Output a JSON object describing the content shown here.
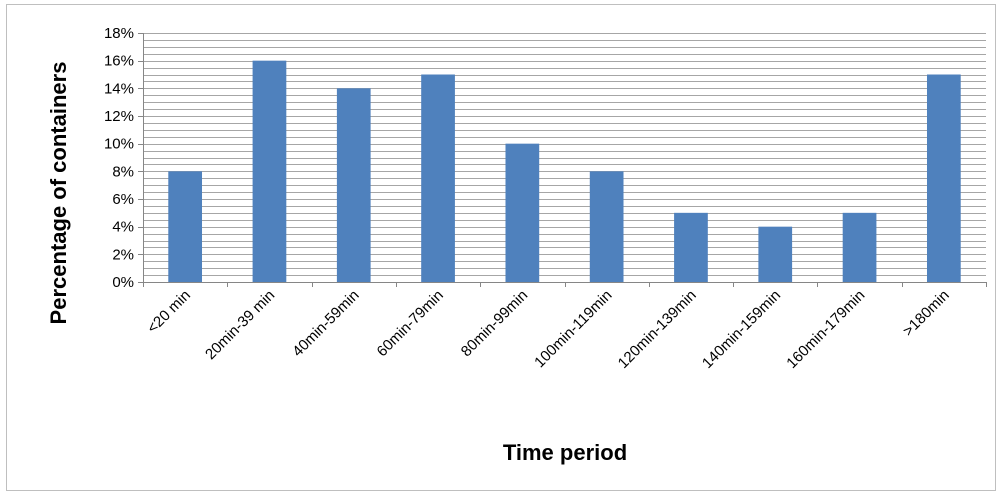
{
  "chart_data": {
    "type": "bar",
    "title": "",
    "xlabel": "Time period",
    "ylabel": "Percentage of containers",
    "categories": [
      "<20 min",
      "20min-39 min",
      "40min-59min",
      "60min-79min",
      "80min-99min",
      "100min-119min",
      "120min-139min",
      "140min-159min",
      "160min-179min",
      ">180min"
    ],
    "values": [
      8,
      16,
      14,
      15,
      10,
      8,
      5,
      4,
      5,
      15
    ],
    "value_format": "percent",
    "ylim": [
      0,
      18
    ],
    "yticks": [
      0,
      2,
      4,
      6,
      8,
      10,
      12,
      14,
      16,
      18
    ],
    "ytick_labels": [
      "0%",
      "2%",
      "4%",
      "6%",
      "8%",
      "10%",
      "12%",
      "14%",
      "16%",
      "18%"
    ],
    "minor_grid_step": 0.5,
    "grid": true,
    "legend": "none",
    "bar_color": "#4f81bd",
    "grid_color": "#a6a6a6"
  }
}
